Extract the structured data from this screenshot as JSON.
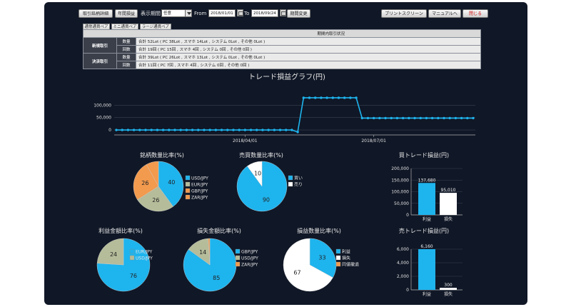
{
  "toolbar": {
    "btn_history": "取引銘柄詳細",
    "btn_annual": "年間損益",
    "period_label": "表示期間",
    "period_select": "任意",
    "from_label": "From",
    "from_date": "2018/01/01",
    "to_label": "To",
    "to_date": "2018/09/24",
    "btn_change": "期間変更",
    "btn_print": "プリントスクリーン",
    "btn_manual": "マニュアルへ",
    "btn_close": "閉じる"
  },
  "pair_tabs": [
    "通常通貨ペア",
    "ミニ通貨ペア",
    "ラージ通貨ペア"
  ],
  "summary": {
    "header": "期間内取引状況",
    "rows": [
      {
        "group": "新規取引",
        "type": "数量",
        "value": "合計 52Lot ( PC 38Lot , スマホ 14Lot , システム 0Lot , その他 0Lot )"
      },
      {
        "group": "",
        "type": "回数",
        "value": "合計 19回 ( PC 15回 , スマホ 4回 , システム 0回 , その他 0回 )"
      },
      {
        "group": "決済取引",
        "type": "数量",
        "value": "合計 39Lot ( PC 26Lot , スマホ 13Lot , システム 0Lot , その他 0Lot )"
      },
      {
        "group": "",
        "type": "回数",
        "value": "合計 11回 ( PC 7回 , スマホ 4回 , システム 0回 , その他 0回 )"
      }
    ]
  },
  "colors": {
    "blue": "#1eb4ee",
    "olive": "#b5bc9a",
    "orange": "#f29a4e",
    "white": "#ffffff",
    "grid": "#3a4252"
  },
  "charts": {
    "line": {
      "type": "line",
      "title": "トレード損益グラフ(円)",
      "y_ticks": [
        0,
        50000,
        100000
      ],
      "y_tick_labels": [
        "0",
        "50,000",
        "100,000"
      ],
      "ylim": [
        -20000,
        150000
      ],
      "x_tick_labels": [
        "2018/04/01",
        "2018/07/01"
      ],
      "values": [
        0,
        0,
        0,
        0,
        0,
        0,
        0,
        0,
        0,
        0,
        0,
        0,
        0,
        0,
        0,
        0,
        0,
        0,
        0,
        0,
        0,
        0,
        0,
        0,
        0,
        0,
        0,
        0,
        0,
        0,
        0,
        -8000,
        130000,
        130000,
        130000,
        130000,
        130000,
        130000,
        130000,
        130000,
        130000,
        130000,
        48000,
        48000,
        48000,
        48000,
        48000,
        48000,
        48000,
        48000,
        48000,
        48000,
        48000,
        48000,
        48000,
        48000,
        48000,
        48000,
        48000,
        48000,
        48000,
        48000
      ]
    },
    "pie_symbol": {
      "type": "pie",
      "title": "銘柄数量比率(%)",
      "slices": [
        {
          "label": "USD/JPY",
          "value": 40,
          "color": "#1eb4ee"
        },
        {
          "label": "EUR/JPY",
          "value": 26,
          "color": "#b5bc9a"
        },
        {
          "label": "GBP/JPY",
          "value": 26,
          "color": "#f29a4e"
        },
        {
          "label": "ZAR/JPY",
          "value": 8,
          "color": "#f29a4e"
        }
      ],
      "shown_labels": [
        "40",
        "26",
        "26"
      ]
    },
    "pie_side": {
      "type": "pie",
      "title": "売買数量比率(%)",
      "slices": [
        {
          "label": "買い",
          "value": 90,
          "color": "#1eb4ee"
        },
        {
          "label": "売り",
          "value": 10,
          "color": "#ffffff"
        }
      ],
      "shown_labels": [
        "90",
        "10"
      ]
    },
    "pie_profit": {
      "type": "pie",
      "title": "利益金額比率(%)",
      "slices": [
        {
          "label": "EUR/JPY",
          "value": 76,
          "color": "#1eb4ee"
        },
        {
          "label": "USD/JPY",
          "value": 24,
          "color": "#b5bc9a"
        }
      ],
      "shown_labels": [
        "76",
        "24"
      ]
    },
    "pie_loss": {
      "type": "pie",
      "title": "損失金額比率(%)",
      "slices": [
        {
          "label": "GBP/JPY",
          "value": 85,
          "color": "#1eb4ee"
        },
        {
          "label": "USD/JPY",
          "value": 14,
          "color": "#b5bc9a"
        },
        {
          "label": "ZAR/JPY",
          "value": 1,
          "color": "#f29a4e"
        }
      ],
      "shown_labels": [
        "85",
        "14"
      ]
    },
    "pie_count": {
      "type": "pie",
      "title": "損益数量比率(%)",
      "slices": [
        {
          "label": "利益",
          "value": 33,
          "color": "#1eb4ee"
        },
        {
          "label": "損失",
          "value": 67,
          "color": "#ffffff"
        },
        {
          "label": "同値撤退",
          "value": 0,
          "color": "#f29a4e"
        }
      ],
      "shown_labels": [
        "33",
        "67"
      ]
    },
    "bar_buy": {
      "type": "bar",
      "title": "買トレード損益(円)",
      "categories": [
        "利益",
        "損失"
      ],
      "values": [
        137680,
        95010
      ],
      "value_labels": [
        "137,680",
        "95,010"
      ],
      "colors": [
        "#1eb4ee",
        "#ffffff"
      ],
      "ylim": [
        0,
        200000
      ],
      "y_ticks": [
        0,
        50000,
        100000,
        150000,
        200000
      ],
      "y_tick_labels": [
        "0",
        "50,000",
        "100,000",
        "150,000",
        "200,000"
      ]
    },
    "bar_sell": {
      "type": "bar",
      "title": "売トレード損益(円)",
      "categories": [
        "利益",
        "損失"
      ],
      "values": [
        6160,
        300
      ],
      "value_labels": [
        "6,160",
        "300"
      ],
      "colors": [
        "#1eb4ee",
        "#ffffff"
      ],
      "ylim": [
        0,
        6000
      ],
      "y_ticks": [
        0,
        2000,
        4000,
        6000
      ],
      "y_tick_labels": [
        "0",
        "2,000",
        "4,000",
        "6,000"
      ]
    }
  }
}
